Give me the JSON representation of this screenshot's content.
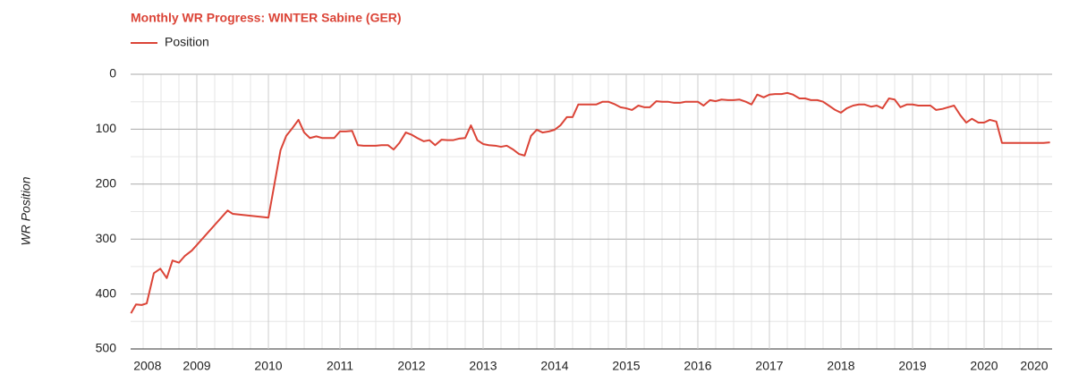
{
  "chart_data": {
    "type": "line",
    "title": "Monthly WR Progress: WINTER Sabine (GER)",
    "y_label": "WR Position",
    "legend_position": "top-left",
    "y_reversed": true,
    "grid": true,
    "xlim": [
      2008.075,
      2020.95
    ],
    "ylim": [
      0,
      500
    ],
    "yticks": [
      0,
      100,
      200,
      300,
      400,
      500
    ],
    "xticks": [
      {
        "value": 2008.31,
        "label": "2008"
      },
      2009,
      2010,
      2011,
      2012,
      2013,
      2014,
      2015,
      2016,
      2017,
      2018,
      2019,
      2020,
      {
        "value": 2020.7,
        "label": "2020"
      }
    ],
    "x": [
      2008.08,
      2008.15,
      2008.23,
      2008.3,
      2008.4,
      2008.49,
      2008.58,
      2008.66,
      2008.75,
      2008.83,
      2008.93,
      2009.43,
      2009.5,
      2010.0,
      2010.17,
      2010.25,
      2010.33,
      2010.42,
      2010.5,
      2010.58,
      2010.67,
      2010.75,
      2010.83,
      2010.92,
      2011.0,
      2011.08,
      2011.17,
      2011.25,
      2011.33,
      2011.42,
      2011.5,
      2011.58,
      2011.67,
      2011.75,
      2011.83,
      2011.92,
      2012.0,
      2012.08,
      2012.17,
      2012.25,
      2012.33,
      2012.42,
      2012.5,
      2012.58,
      2012.67,
      2012.75,
      2012.83,
      2012.92,
      2013.0,
      2013.08,
      2013.17,
      2013.25,
      2013.33,
      2013.42,
      2013.5,
      2013.58,
      2013.67,
      2013.75,
      2013.83,
      2013.92,
      2014.0,
      2014.08,
      2014.17,
      2014.25,
      2014.33,
      2014.42,
      2014.5,
      2014.58,
      2014.67,
      2014.75,
      2014.83,
      2014.92,
      2015.0,
      2015.08,
      2015.17,
      2015.25,
      2015.33,
      2015.42,
      2015.5,
      2015.58,
      2015.67,
      2015.75,
      2015.83,
      2015.92,
      2016.0,
      2016.08,
      2016.17,
      2016.25,
      2016.33,
      2016.42,
      2016.5,
      2016.58,
      2016.67,
      2016.75,
      2016.83,
      2016.92,
      2017.0,
      2017.08,
      2017.17,
      2017.25,
      2017.33,
      2017.42,
      2017.5,
      2017.58,
      2017.67,
      2017.75,
      2017.83,
      2017.92,
      2018.0,
      2018.08,
      2018.17,
      2018.25,
      2018.33,
      2018.42,
      2018.5,
      2018.58,
      2018.67,
      2018.75,
      2018.83,
      2018.92,
      2019.0,
      2019.08,
      2019.17,
      2019.25,
      2019.33,
      2019.42,
      2019.5,
      2019.58,
      2019.67,
      2019.75,
      2019.83,
      2019.92,
      2020.0,
      2020.08,
      2020.17,
      2020.25,
      2020.33,
      2020.42,
      2020.5,
      2020.58,
      2020.67,
      2020.75,
      2020.83,
      2020.92
    ],
    "series": [
      {
        "name": "Position",
        "color": "#db4437",
        "values": [
          435,
          419,
          420,
          417,
          362,
          354,
          371,
          339,
          343,
          331,
          321,
          248,
          254,
          261,
          138,
          112,
          99,
          83,
          106,
          116,
          113,
          116,
          116,
          116,
          104,
          104,
          103,
          129,
          130,
          130,
          130,
          129,
          129,
          137,
          125,
          106,
          110,
          116,
          122,
          120,
          129,
          119,
          120,
          120,
          117,
          116,
          93,
          120,
          127,
          129,
          130,
          132,
          130,
          137,
          145,
          148,
          112,
          101,
          106,
          104,
          101,
          93,
          78,
          78,
          55,
          55,
          55,
          55,
          50,
          50,
          54,
          60,
          62,
          65,
          57,
          60,
          60,
          49,
          50,
          50,
          52,
          52,
          50,
          50,
          50,
          57,
          47,
          49,
          46,
          47,
          47,
          46,
          50,
          55,
          37,
          42,
          37,
          36,
          36,
          34,
          37,
          44,
          44,
          47,
          47,
          50,
          57,
          65,
          70,
          62,
          57,
          55,
          55,
          59,
          57,
          62,
          44,
          46,
          60,
          55,
          55,
          57,
          57,
          57,
          65,
          63,
          60,
          57,
          75,
          88,
          81,
          88,
          88,
          83,
          86,
          125,
          125,
          125,
          125,
          125,
          125,
          125,
          125,
          124
        ]
      }
    ]
  }
}
